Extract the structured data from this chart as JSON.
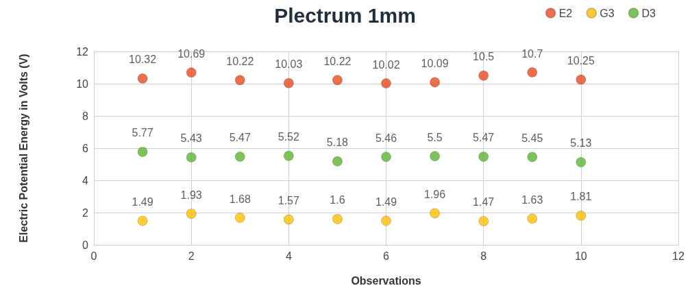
{
  "chart_data": {
    "type": "scatter",
    "title": "Plectrum 1mm",
    "xlabel": "Observations",
    "ylabel": "Electric Potential Energy in Volts (V)",
    "x": [
      1,
      2,
      3,
      4,
      5,
      6,
      7,
      8,
      9,
      10
    ],
    "series": [
      {
        "name": "E2",
        "color": "#e8481f",
        "values": [
          10.32,
          10.69,
          10.22,
          10.03,
          10.22,
          10.02,
          10.09,
          10.5,
          10.7,
          10.25
        ]
      },
      {
        "name": "G3",
        "color": "#ffbf00",
        "values": [
          1.49,
          1.93,
          1.68,
          1.57,
          1.6,
          1.49,
          1.96,
          1.47,
          1.63,
          1.81
        ]
      },
      {
        "name": "D3",
        "color": "#5bb531",
        "values": [
          5.77,
          5.43,
          5.47,
          5.52,
          5.18,
          5.46,
          5.5,
          5.47,
          5.45,
          5.13
        ]
      }
    ],
    "xlim": [
      0,
      12
    ],
    "xticks": [
      0,
      2,
      4,
      6,
      8,
      10,
      12
    ],
    "ylim": [
      0,
      12
    ],
    "yticks": [
      0,
      2,
      4,
      6,
      8,
      10,
      12
    ],
    "grid": true,
    "legend": "top right",
    "marker": "circle",
    "data_labels": true
  }
}
